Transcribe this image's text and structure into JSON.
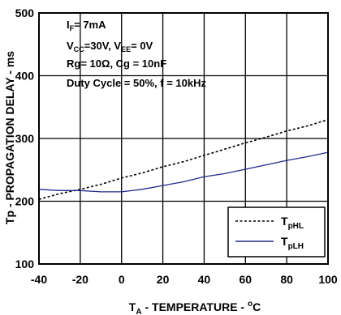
{
  "chart_data": {
    "type": "line",
    "xlabel": {
      "main": "T",
      "sub": "A",
      "rest": " - TEMPERATURE - ",
      "sup": "o",
      "unit": "C"
    },
    "ylabel": "Tp - PROPAGATION DELAY - ms",
    "xlim": [
      -40,
      100
    ],
    "ylim": [
      100,
      500
    ],
    "xticks": [
      "-40",
      "-20",
      "0",
      "20",
      "40",
      "60",
      "80",
      "100"
    ],
    "yticks": [
      "100",
      "200",
      "300",
      "400",
      "500"
    ],
    "grid": true,
    "legend_position": "bottom-right",
    "conditions": [
      {
        "main": "I",
        "sub": "F",
        "rest": "= 7mA"
      },
      {
        "main": "V",
        "sub": "CC",
        "rest": "=30V, V",
        "sub2": "EE",
        "rest2": "= 0V"
      },
      {
        "main": "Rg= 10",
        "omega": "Ω",
        "rest": ", Cg = 10nF"
      },
      {
        "main": "Duty Cycle = 50%, f = 10kHz"
      }
    ],
    "series": [
      {
        "name": "T",
        "name_sub": "pHL",
        "style": "dashed",
        "color": "#000000",
        "x": [
          -40,
          -30,
          -20,
          -10,
          0,
          10,
          20,
          30,
          40,
          50,
          60,
          70,
          80,
          90,
          100
        ],
        "y": [
          203,
          212,
          219,
          227,
          237,
          245,
          255,
          263,
          273,
          283,
          293,
          302,
          312,
          320,
          330
        ]
      },
      {
        "name": "T",
        "name_sub": "pLH",
        "style": "solid",
        "color": "#1f2a8c",
        "x": [
          -40,
          -30,
          -20,
          -10,
          0,
          10,
          20,
          30,
          40,
          50,
          60,
          70,
          80,
          90,
          100
        ],
        "y": [
          219,
          217,
          217,
          215,
          215,
          219,
          225,
          231,
          239,
          244,
          251,
          258,
          265,
          271,
          278
        ]
      }
    ]
  }
}
